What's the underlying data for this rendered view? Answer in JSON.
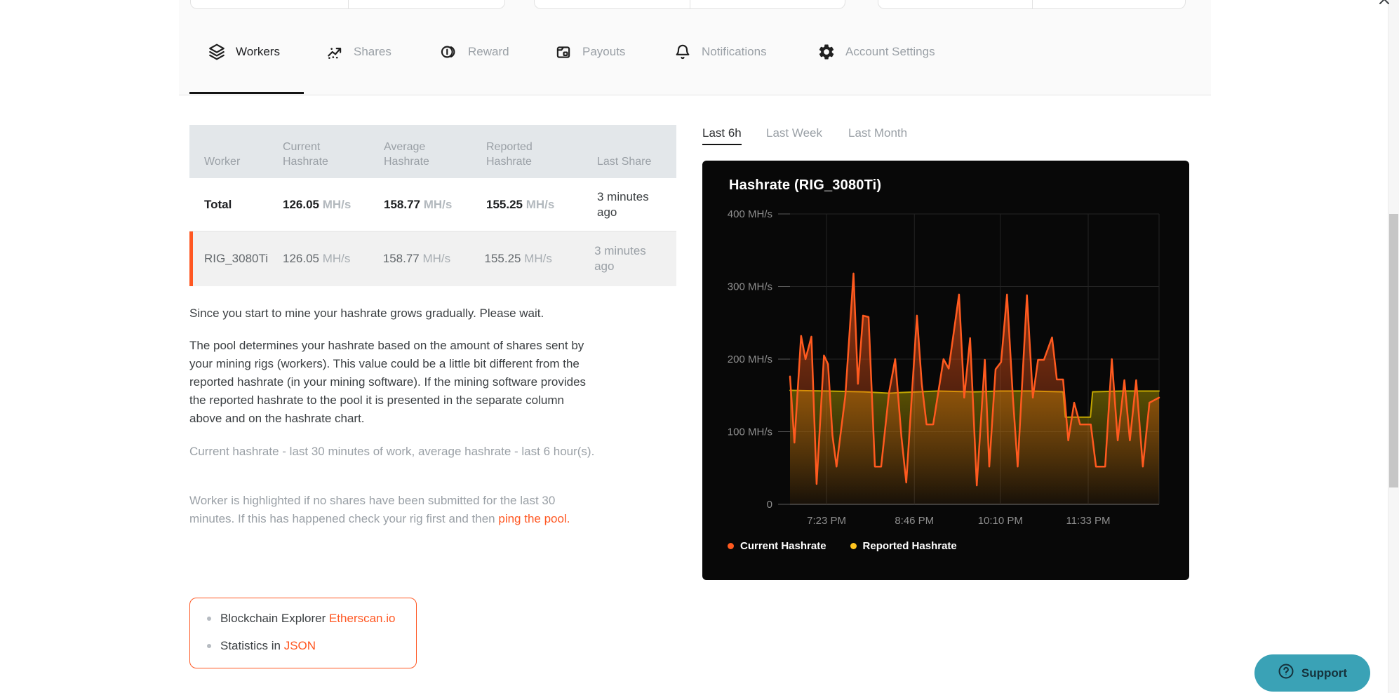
{
  "tabs": [
    {
      "label": "Workers",
      "icon": "layers-icon",
      "active": true
    },
    {
      "label": "Shares",
      "icon": "scatter-icon",
      "active": false
    },
    {
      "label": "Reward",
      "icon": "coins-icon",
      "active": false
    },
    {
      "label": "Payouts",
      "icon": "wallet-icon",
      "active": false
    },
    {
      "label": "Notifications",
      "icon": "bell-icon",
      "active": false
    },
    {
      "label": "Account Settings",
      "icon": "gear-icon",
      "active": false
    }
  ],
  "workers_table": {
    "headers": [
      "Worker",
      "Current Hashrate",
      "Average Hashrate",
      "Reported Hashrate",
      "Last Share"
    ],
    "rows": [
      {
        "worker": "Total",
        "current": "126.05",
        "current_unit": "MH/s",
        "average": "158.77",
        "average_unit": "MH/s",
        "reported": "155.25",
        "reported_unit": "MH/s",
        "last_share": "3 minutes ago",
        "bold": true,
        "highlighted": false
      },
      {
        "worker": "RIG_3080Ti",
        "current": "126.05",
        "current_unit": "MH/s",
        "average": "158.77",
        "average_unit": "MH/s",
        "reported": "155.25",
        "reported_unit": "MH/s",
        "last_share": "3 minutes ago",
        "bold": false,
        "highlighted": true
      }
    ]
  },
  "notes": {
    "p1": "Since you start to mine your hashrate grows gradually. Please wait.",
    "p2": "The pool determines your hashrate based on the amount of shares sent by your mining rigs (workers). This value could be a little bit different from the reported hashrate (in your mining software). If the mining software provides the reported hashrate to the pool it is presented in the separate column above and on the hashrate chart.",
    "p3": "Current hashrate - last 30 minutes of work, average hashrate - last 6 hour(s).",
    "p4_text": "Worker is highlighted if no shares have been submitted for the last 30 minutes. If this has happened check your rig first and then ",
    "p4_link": "ping the pool."
  },
  "links_box": {
    "item1_text": "Blockchain Explorer ",
    "item1_link": "Etherscan.io",
    "item2_text": "Statistics in ",
    "item2_link": "JSON"
  },
  "range_tabs": [
    {
      "label": "Last 6h",
      "active": true
    },
    {
      "label": "Last Week",
      "active": false
    },
    {
      "label": "Last Month",
      "active": false
    }
  ],
  "chart_data": {
    "type": "area",
    "title": "Hashrate (RIG_3080Ti)",
    "ylabel": "MH/s",
    "ylim": [
      0,
      400
    ],
    "grid": true,
    "legend_position": "bottom-left",
    "yticks": [
      {
        "v": 400,
        "label": "400 MH/s"
      },
      {
        "v": 300,
        "label": "300 MH/s"
      },
      {
        "v": 200,
        "label": "200 MH/s"
      },
      {
        "v": 100,
        "label": "100 MH/s"
      },
      {
        "v": 0,
        "label": "0"
      }
    ],
    "xticks": [
      {
        "pos": 0.099,
        "label": "7:23 PM"
      },
      {
        "pos": 0.337,
        "label": "8:46 PM"
      },
      {
        "pos": 0.57,
        "label": "10:10 PM"
      },
      {
        "pos": 0.808,
        "label": "11:33 PM"
      }
    ],
    "legend": [
      {
        "label": "Current Hashrate",
        "color": "#ff5a1f"
      },
      {
        "label": "Reported Hashrate",
        "color": "#ffc51f"
      }
    ],
    "series": [
      {
        "name": "Reported Hashrate",
        "color": "#c2a600",
        "fill_from": "rgba(170,150,0,0.50)",
        "fill_to": "rgba(170,150,0,0.04)",
        "points": [
          [
            0.0,
            157
          ],
          [
            0.1,
            156
          ],
          [
            0.2,
            155
          ],
          [
            0.27,
            153
          ],
          [
            0.3,
            154
          ],
          [
            0.4,
            156
          ],
          [
            0.5,
            155
          ],
          [
            0.57,
            156
          ],
          [
            0.65,
            156
          ],
          [
            0.74,
            155
          ],
          [
            0.746,
            120
          ],
          [
            0.814,
            120
          ],
          [
            0.82,
            155
          ],
          [
            0.9,
            156
          ],
          [
            1.0,
            156
          ]
        ]
      },
      {
        "name": "Current Hashrate",
        "color": "#ff5a1f",
        "fill_from": "rgba(255,90,25,0.60)",
        "fill_to": "rgba(255,90,25,0.04)",
        "points": [
          [
            0.0,
            176
          ],
          [
            0.012,
            85
          ],
          [
            0.03,
            232
          ],
          [
            0.042,
            200
          ],
          [
            0.058,
            231
          ],
          [
            0.072,
            28
          ],
          [
            0.092,
            205
          ],
          [
            0.103,
            193
          ],
          [
            0.115,
            95
          ],
          [
            0.126,
            52
          ],
          [
            0.15,
            150
          ],
          [
            0.172,
            318
          ],
          [
            0.184,
            166
          ],
          [
            0.198,
            260
          ],
          [
            0.213,
            258
          ],
          [
            0.23,
            52
          ],
          [
            0.247,
            52
          ],
          [
            0.268,
            153
          ],
          [
            0.285,
            200
          ],
          [
            0.302,
            92
          ],
          [
            0.315,
            30
          ],
          [
            0.344,
            260
          ],
          [
            0.357,
            166
          ],
          [
            0.37,
            110
          ],
          [
            0.388,
            110
          ],
          [
            0.416,
            200
          ],
          [
            0.43,
            187
          ],
          [
            0.458,
            289
          ],
          [
            0.472,
            147
          ],
          [
            0.488,
            229
          ],
          [
            0.506,
            26
          ],
          [
            0.528,
            199
          ],
          [
            0.54,
            52
          ],
          [
            0.557,
            186
          ],
          [
            0.572,
            196
          ],
          [
            0.588,
            289
          ],
          [
            0.604,
            147
          ],
          [
            0.617,
            52
          ],
          [
            0.642,
            288
          ],
          [
            0.658,
            147
          ],
          [
            0.672,
            199
          ],
          [
            0.688,
            199
          ],
          [
            0.71,
            230
          ],
          [
            0.723,
            172
          ],
          [
            0.74,
            172
          ],
          [
            0.754,
            88
          ],
          [
            0.77,
            140
          ],
          [
            0.786,
            110
          ],
          [
            0.815,
            110
          ],
          [
            0.829,
            52
          ],
          [
            0.854,
            52
          ],
          [
            0.872,
            200
          ],
          [
            0.888,
            88
          ],
          [
            0.906,
            171
          ],
          [
            0.921,
            88
          ],
          [
            0.938,
            171
          ],
          [
            0.956,
            52
          ],
          [
            0.974,
            140
          ],
          [
            1.0,
            147
          ]
        ]
      }
    ]
  },
  "support": {
    "label": "Support"
  },
  "colors": {
    "accent_orange": "#ff5722",
    "table_header_bg": "#e3e7ea",
    "highlight_row_bg": "#f1f1f1",
    "chart_bg": "#080808",
    "support_teal": "#3aa2b6"
  }
}
